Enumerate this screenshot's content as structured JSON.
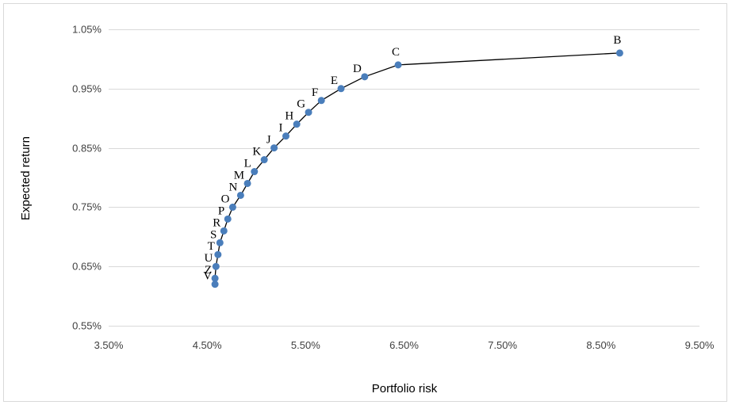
{
  "chart_data": {
    "type": "scatter",
    "title": "",
    "xlabel": "Portfolio risk",
    "ylabel": "Expected return",
    "xlim": [
      0.035,
      0.095
    ],
    "ylim": [
      0.0055,
      0.0105
    ],
    "x_ticks": [
      0.035,
      0.045,
      0.055,
      0.065,
      0.075,
      0.085,
      0.095
    ],
    "x_tick_labels": [
      "3.50%",
      "4.50%",
      "5.50%",
      "6.50%",
      "7.50%",
      "8.50%",
      "9.50%"
    ],
    "y_ticks": [
      0.0055,
      0.0065,
      0.0075,
      0.0085,
      0.0095,
      0.0105
    ],
    "y_tick_labels": [
      "0.55%",
      "0.65%",
      "0.75%",
      "0.85%",
      "0.95%",
      "1.05%"
    ],
    "grid": "horizontal",
    "legend": "none",
    "marker_color": "#4a7ebb",
    "line_color": "#000000",
    "points": [
      {
        "label": "B",
        "x": 0.0869,
        "y": 0.0101
      },
      {
        "label": "C",
        "x": 0.0644,
        "y": 0.0099
      },
      {
        "label": "D",
        "x": 0.061,
        "y": 0.0097
      },
      {
        "label": "E",
        "x": 0.0586,
        "y": 0.0095
      },
      {
        "label": "F",
        "x": 0.0566,
        "y": 0.0093
      },
      {
        "label": "G",
        "x": 0.0553,
        "y": 0.0091
      },
      {
        "label": "H",
        "x": 0.0541,
        "y": 0.0089
      },
      {
        "label": "I",
        "x": 0.053,
        "y": 0.0087
      },
      {
        "label": "J",
        "x": 0.0518,
        "y": 0.0085
      },
      {
        "label": "K",
        "x": 0.0508,
        "y": 0.0083
      },
      {
        "label": "L",
        "x": 0.0498,
        "y": 0.0081
      },
      {
        "label": "M",
        "x": 0.0491,
        "y": 0.0079
      },
      {
        "label": "N",
        "x": 0.0484,
        "y": 0.0077
      },
      {
        "label": "O",
        "x": 0.0476,
        "y": 0.0075
      },
      {
        "label": "P",
        "x": 0.0471,
        "y": 0.0073
      },
      {
        "label": "R",
        "x": 0.0467,
        "y": 0.0071
      },
      {
        "label": "S",
        "x": 0.0463,
        "y": 0.0069
      },
      {
        "label": "T",
        "x": 0.0461,
        "y": 0.0067
      },
      {
        "label": "U",
        "x": 0.0459,
        "y": 0.0065
      },
      {
        "label": "Z",
        "x": 0.0458,
        "y": 0.0063
      },
      {
        "label": "V",
        "x": 0.0458,
        "y": 0.0062
      }
    ]
  }
}
